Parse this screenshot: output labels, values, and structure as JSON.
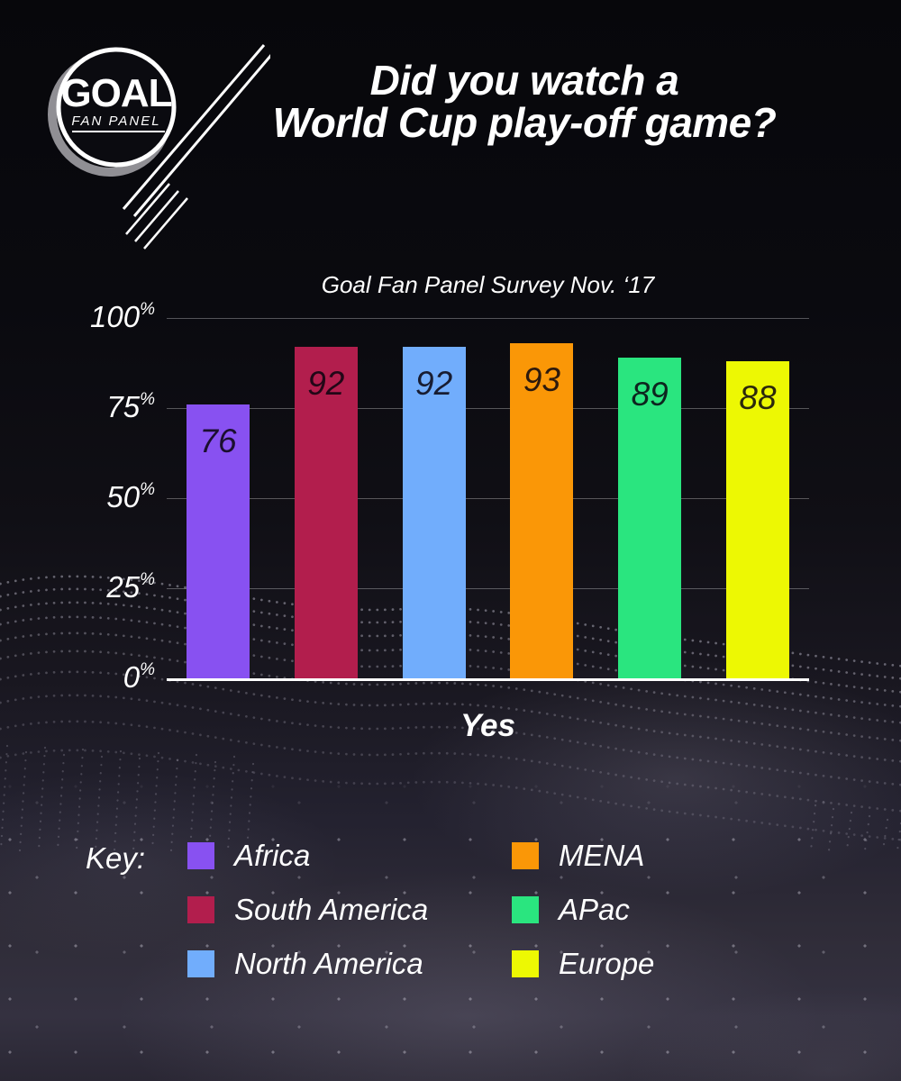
{
  "logo": {
    "brand": "GOAL",
    "subtitle": "FAN PANEL"
  },
  "header": {
    "title_line1": "Did you watch a",
    "title_line2": "World Cup play-off game?"
  },
  "chart_data": {
    "type": "bar",
    "title": "Goal Fan Panel Survey Nov. ‘17",
    "categories": [
      "Africa",
      "South America",
      "North America",
      "MENA",
      "APac",
      "Europe"
    ],
    "values": [
      76,
      92,
      92,
      93,
      89,
      88
    ],
    "colors": [
      "#8851F1",
      "#B21E4D",
      "#71ADFC",
      "#FA9707",
      "#2AE57F",
      "#EDF803"
    ],
    "xlabel": "Yes",
    "ylim": [
      0,
      100
    ],
    "ytick_values": [
      "100",
      "75",
      "50",
      "25",
      "0"
    ],
    "percent_sign": "%",
    "grid": true,
    "bar_value_labels": true,
    "legend_position": "bottom"
  },
  "legend": {
    "heading": "Key:",
    "items": [
      {
        "label": "Africa"
      },
      {
        "label": "South America"
      },
      {
        "label": "North America"
      },
      {
        "label": "MENA"
      },
      {
        "label": "APac"
      },
      {
        "label": "Europe"
      }
    ]
  }
}
